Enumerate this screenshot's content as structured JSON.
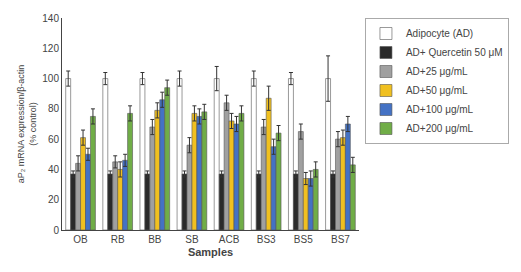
{
  "chart_data": {
    "type": "bar",
    "categories": [
      "OB",
      "RB",
      "BB",
      "SB",
      "ACB",
      "BS3",
      "BS5",
      "BS7"
    ],
    "series": [
      {
        "name": "Adipocyte (AD)",
        "color": "#ffffff",
        "values": [
          100,
          100,
          100,
          100,
          100,
          100,
          100,
          100
        ],
        "errors": [
          5,
          4,
          4,
          5,
          8,
          5,
          4,
          15
        ]
      },
      {
        "name": "AD+ Quercetin 50 μM",
        "color": "#2a2a2a",
        "values": [
          37,
          37,
          37,
          37,
          37,
          37,
          37,
          37
        ],
        "errors": [
          2,
          2,
          2,
          2,
          2,
          2,
          2,
          2
        ]
      },
      {
        "name": "AD+25 μg/mL",
        "color": "#a0a0a0",
        "values": [
          44,
          45,
          68,
          56,
          84,
          68,
          65,
          60
        ],
        "errors": [
          5,
          4,
          5,
          5,
          5,
          5,
          5,
          5
        ]
      },
      {
        "name": "AD+50 μg/mL",
        "color": "#f0c020",
        "values": [
          61,
          40,
          79,
          77,
          72,
          87,
          34,
          61
        ],
        "errors": [
          5,
          5,
          5,
          5,
          5,
          8,
          4,
          5
        ]
      },
      {
        "name": "AD+100 μg/mL",
        "color": "#4472c4",
        "values": [
          50,
          46,
          86,
          75,
          70,
          55,
          34,
          70
        ],
        "errors": [
          4,
          4,
          5,
          5,
          5,
          5,
          5,
          5
        ]
      },
      {
        "name": "AD+200 μg/mL",
        "color": "#70ad47",
        "values": [
          75,
          77,
          94,
          78,
          77,
          64,
          40,
          43
        ],
        "errors": [
          5,
          5,
          5,
          5,
          5,
          5,
          5,
          5
        ]
      }
    ],
    "xlabel": "Samples",
    "ylabel": "aP₂ mRNA expression/β-actin\n(% control)",
    "ylim": [
      0,
      140
    ],
    "yticks": [
      0,
      20,
      40,
      60,
      80,
      100,
      120,
      140
    ],
    "grid": false,
    "legend": "right"
  }
}
